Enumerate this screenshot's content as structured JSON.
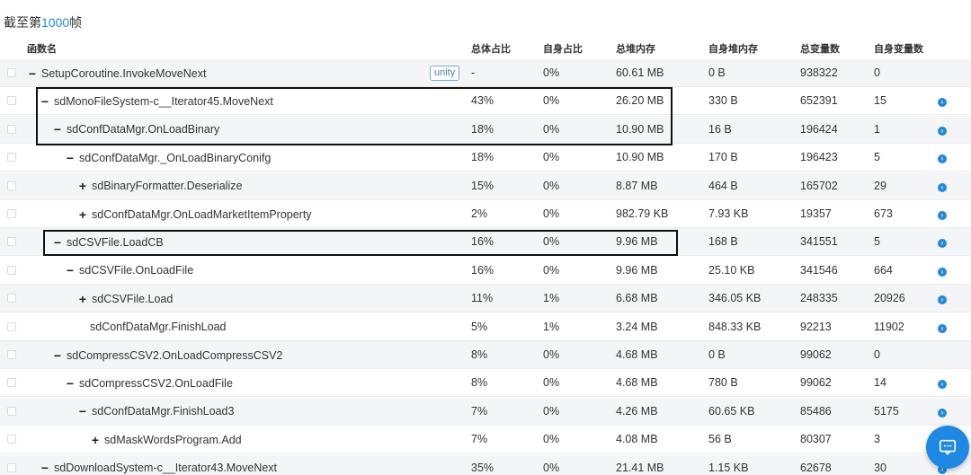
{
  "frame_label": {
    "prefix": "截至第",
    "number": "1000",
    "suffix": "帧"
  },
  "columns": {
    "name": "函数名",
    "total_pct": "总体占比",
    "self_pct": "自身占比",
    "total_heap": "总堆内存",
    "self_heap": "自身堆内存",
    "total_vars": "总变量数",
    "self_vars": "自身变量数"
  },
  "badge_label": "unity",
  "rows": [
    {
      "toggle": "−",
      "name": "SetupCoroutine.InvokeMoveNext",
      "total_pct": "-",
      "self_pct": "0%",
      "total_heap": "60.61 MB",
      "self_heap": "0 B",
      "total_vars": "938322",
      "self_vars": "0",
      "go": false,
      "badge": true
    },
    {
      "toggle": "−",
      "name": "sdMonoFileSystem-c__Iterator45.MoveNext",
      "total_pct": "43%",
      "self_pct": "0%",
      "total_heap": "26.20 MB",
      "self_heap": "330 B",
      "total_vars": "652391",
      "self_vars": "15",
      "go": true
    },
    {
      "toggle": "−",
      "name": "sdConfDataMgr.OnLoadBinary",
      "total_pct": "18%",
      "self_pct": "0%",
      "total_heap": "10.90 MB",
      "self_heap": "16 B",
      "total_vars": "196424",
      "self_vars": "1",
      "go": true
    },
    {
      "toggle": "−",
      "name": "sdConfDataMgr._OnLoadBinaryConifg",
      "total_pct": "18%",
      "self_pct": "0%",
      "total_heap": "10.90 MB",
      "self_heap": "170 B",
      "total_vars": "196423",
      "self_vars": "5",
      "go": true
    },
    {
      "toggle": "+",
      "name": "sdBinaryFormatter.Deserialize",
      "total_pct": "15%",
      "self_pct": "0%",
      "total_heap": "8.87 MB",
      "self_heap": "464 B",
      "total_vars": "165702",
      "self_vars": "29",
      "go": true
    },
    {
      "toggle": "+",
      "name": "sdConfDataMgr.OnLoadMarketItemProperty",
      "total_pct": "2%",
      "self_pct": "0%",
      "total_heap": "982.79 KB",
      "self_heap": "7.93 KB",
      "total_vars": "19357",
      "self_vars": "673",
      "go": true
    },
    {
      "toggle": "−",
      "name": "sdCSVFile.LoadCB",
      "total_pct": "16%",
      "self_pct": "0%",
      "total_heap": "9.96 MB",
      "self_heap": "168 B",
      "total_vars": "341551",
      "self_vars": "5",
      "go": true
    },
    {
      "toggle": "−",
      "name": "sdCSVFile.OnLoadFile",
      "total_pct": "16%",
      "self_pct": "0%",
      "total_heap": "9.96 MB",
      "self_heap": "25.10 KB",
      "total_vars": "341546",
      "self_vars": "664",
      "go": true
    },
    {
      "toggle": "+",
      "name": "sdCSVFile.Load",
      "total_pct": "11%",
      "self_pct": "1%",
      "total_heap": "6.68 MB",
      "self_heap": "346.05 KB",
      "total_vars": "248335",
      "self_vars": "20926",
      "go": true
    },
    {
      "toggle": "",
      "name": "sdConfDataMgr.FinishLoad",
      "total_pct": "5%",
      "self_pct": "1%",
      "total_heap": "3.24 MB",
      "self_heap": "848.33 KB",
      "total_vars": "92213",
      "self_vars": "11902",
      "go": true
    },
    {
      "toggle": "−",
      "name": "sdCompressCSV2.OnLoadCompressCSV2",
      "total_pct": "8%",
      "self_pct": "0%",
      "total_heap": "4.68 MB",
      "self_heap": "0 B",
      "total_vars": "99062",
      "self_vars": "0",
      "go": false
    },
    {
      "toggle": "−",
      "name": "sdCompressCSV2.OnLoadFile",
      "total_pct": "8%",
      "self_pct": "0%",
      "total_heap": "4.68 MB",
      "self_heap": "780 B",
      "total_vars": "99062",
      "self_vars": "14",
      "go": true
    },
    {
      "toggle": "−",
      "name": "sdConfDataMgr.FinishLoad3",
      "total_pct": "7%",
      "self_pct": "0%",
      "total_heap": "4.26 MB",
      "self_heap": "60.65 KB",
      "total_vars": "85486",
      "self_vars": "5175",
      "go": true
    },
    {
      "toggle": "+",
      "name": "sdMaskWordsProgram.Add",
      "total_pct": "7%",
      "self_pct": "0%",
      "total_heap": "4.08 MB",
      "self_heap": "56 B",
      "total_vars": "80307",
      "self_vars": "3",
      "go": false
    },
    {
      "toggle": "−",
      "name": "sdDownloadSystem-c__Iterator43.MoveNext",
      "total_pct": "35%",
      "self_pct": "0%",
      "total_heap": "21.41 MB",
      "self_heap": "1.15 KB",
      "total_vars": "62678",
      "self_vars": "30",
      "go": true
    }
  ],
  "icons": {
    "go": "arrow-circle-icon",
    "chat": "chat-bubble-icon"
  },
  "colors": {
    "accent": "#1e88e5",
    "badge": "#4a7fb5"
  }
}
